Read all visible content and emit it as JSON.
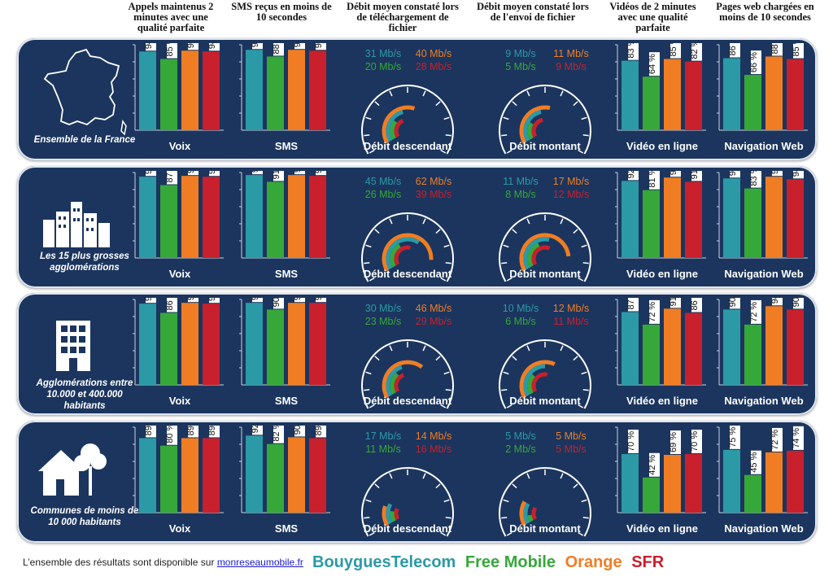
{
  "headers": [
    "Appels maintenus 2 minutes avec une qualité parfaite",
    "SMS reçus en moins de 10 secondes",
    "Débit moyen constaté lors de téléchargement de fichier",
    "Débit moyen constaté lors de l'envoi de fichier",
    "Vidéos de 2 minutes avec une qualité parfaite",
    "Pages web chargées en moins de 10 secondes"
  ],
  "colors": {
    "Bouygues Telecom": "#2b9aa6",
    "Free Mobile": "#36a83a",
    "Orange": "#f07d24",
    "SFR": "#c8202c"
  },
  "operators": [
    "Bouygues Telecom",
    "Free Mobile",
    "Orange",
    "SFR"
  ],
  "chart_data": [
    {
      "segment": "Ensemble de la France",
      "icon": "france-map-icon",
      "voix": [
        94,
        85,
        95,
        94
      ],
      "sms": [
        96,
        88,
        96,
        95
      ],
      "download": {
        "title": "Débit descendant",
        "values": [
          31,
          20,
          40,
          28
        ],
        "labels": [
          "31 Mb/s",
          "20 Mb/s",
          "40 Mb/s",
          "28 Mb/s"
        ]
      },
      "upload": {
        "title": "Débit montant",
        "values": [
          9,
          5,
          11,
          9
        ],
        "labels": [
          "9 Mb/s",
          "5 Mb/s",
          "11 Mb/s",
          "9 Mb/s"
        ]
      },
      "video": [
        83,
        64,
        85,
        82
      ],
      "web": [
        86,
        66,
        88,
        85
      ]
    },
    {
      "segment": "Les 15 plus grosses agglomérations",
      "icon": "city-skyline-icon",
      "voix": [
        97,
        87,
        98,
        97
      ],
      "sms": [
        99,
        91,
        99,
        98
      ],
      "download": {
        "title": "Débit descendant",
        "values": [
          45,
          26,
          62,
          39
        ],
        "labels": [
          "45 Mb/s",
          "26 Mb/s",
          "62 Mb/s",
          "39 Mb/s"
        ]
      },
      "upload": {
        "title": "Débit montant",
        "values": [
          11,
          8,
          17,
          12
        ],
        "labels": [
          "11 Mb/s",
          "8 Mb/s",
          "17 Mb/s",
          "12 Mb/s"
        ]
      },
      "video": [
        92,
        81,
        96,
        91
      ],
      "web": [
        95,
        83,
        97,
        94
      ]
    },
    {
      "segment": "Agglomérations entre 10.000 et 400.000 habitants",
      "icon": "building-icon",
      "voix": [
        97,
        86,
        98,
        97
      ],
      "sms": [
        98,
        90,
        98,
        98
      ],
      "download": {
        "title": "Débit descendant",
        "values": [
          30,
          23,
          46,
          29
        ],
        "labels": [
          "30 Mb/s",
          "23 Mb/s",
          "46 Mb/s",
          "29 Mb/s"
        ]
      },
      "upload": {
        "title": "Débit montant",
        "values": [
          10,
          6,
          12,
          11
        ],
        "labels": [
          "10 Mb/s",
          "6 Mb/s",
          "12 Mb/s",
          "11 Mb/s"
        ]
      },
      "video": [
        87,
        72,
        91,
        86
      ],
      "web": [
        90,
        72,
        94,
        90
      ]
    },
    {
      "segment": "Communes de moins de 10 000 habitants",
      "icon": "house-tree-icon",
      "voix": [
        89,
        80,
        89,
        89
      ],
      "sms": [
        92,
        82,
        90,
        89
      ],
      "download": {
        "title": "Débit descendant",
        "values": [
          17,
          11,
          14,
          16
        ],
        "labels": [
          "17 Mb/s",
          "11 Mb/s",
          "14 Mb/s",
          "16 Mb/s"
        ]
      },
      "upload": {
        "title": "Débit montant",
        "values": [
          5,
          2,
          5,
          5
        ],
        "labels": [
          "5 Mb/s",
          "2 Mb/s",
          "5 Mb/s",
          "5 Mb/s"
        ]
      },
      "video": [
        70,
        42,
        69,
        70
      ],
      "web": [
        75,
        45,
        72,
        74
      ]
    }
  ],
  "bar_titles": {
    "voix": "Voix",
    "sms": "SMS",
    "video": "Vidéo en ligne",
    "web": "Navigation Web"
  },
  "footer": {
    "text": "L’ensemble des résultats sont disponible sur ",
    "link": "monreseaumobile.fr"
  },
  "legend": [
    "BouyguesTelecom",
    "Free Mobile",
    "Orange",
    "SFR"
  ]
}
